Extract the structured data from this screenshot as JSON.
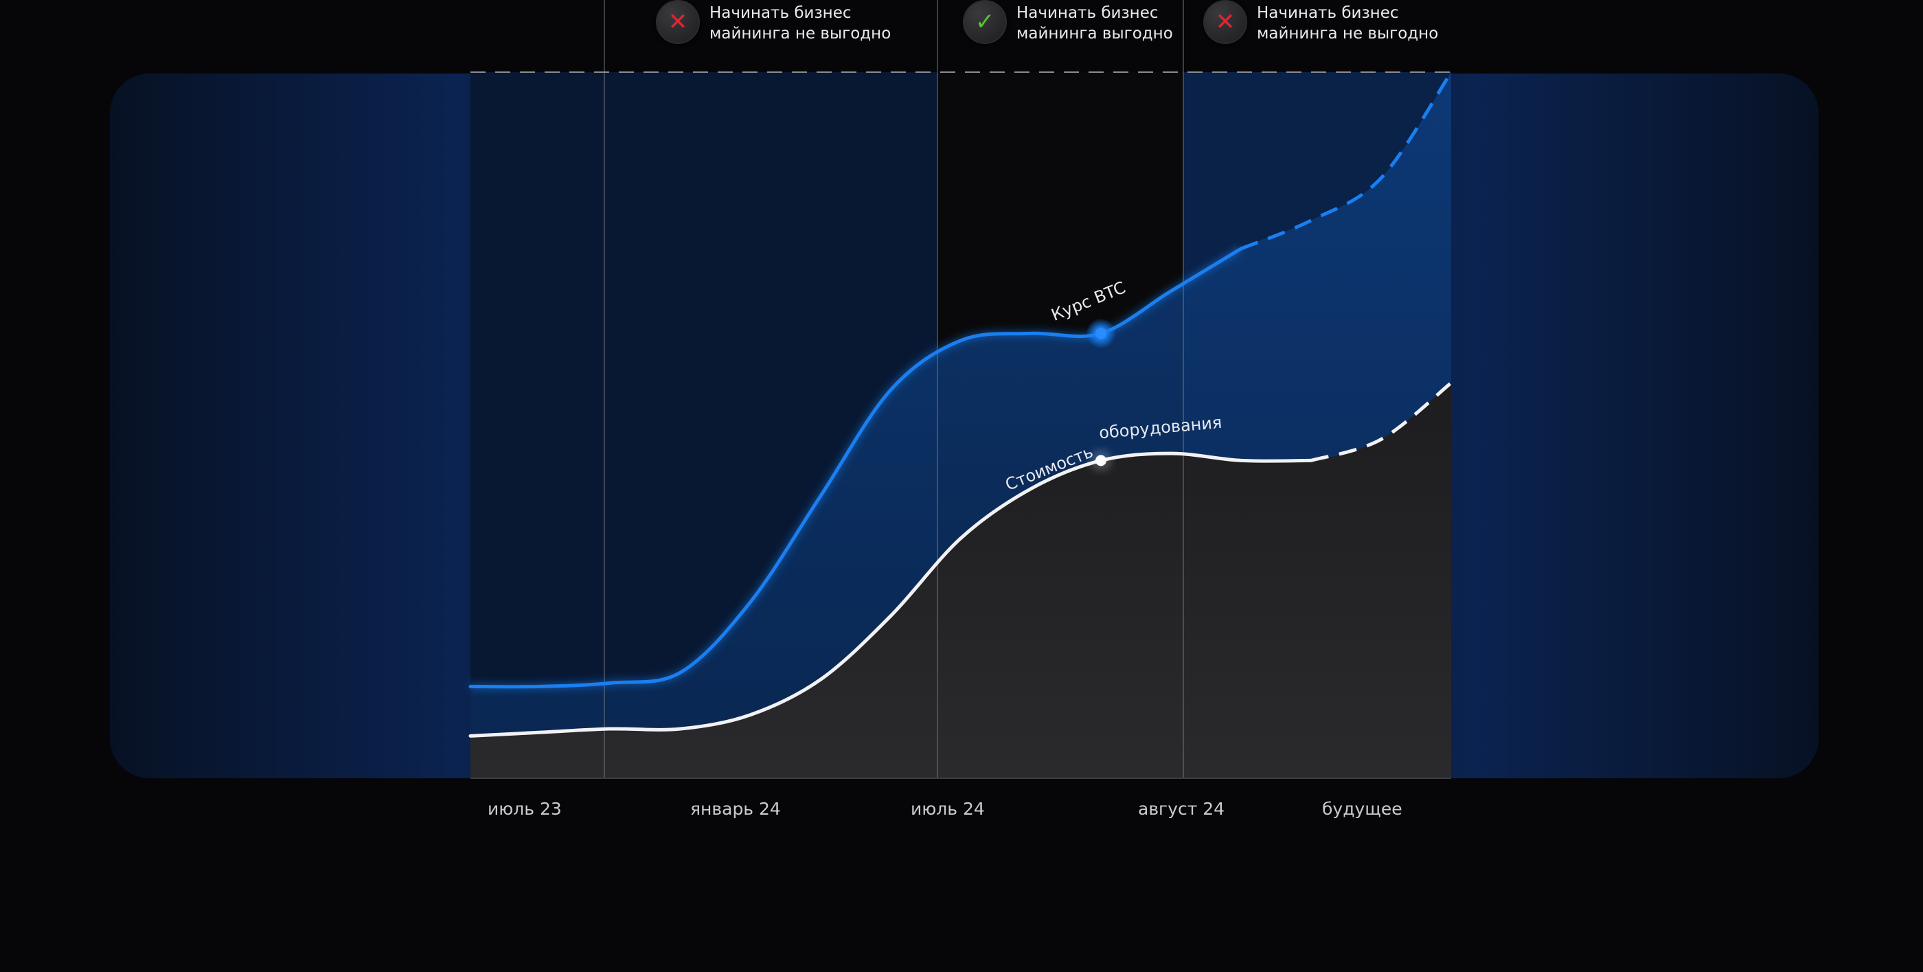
{
  "chart_data": {
    "type": "area",
    "title": "",
    "xlabel": "",
    "ylabel": "",
    "categories": [
      "июль 23",
      "январь 24",
      "июль 24",
      "август 24",
      "будущее"
    ],
    "x": [
      0,
      1,
      2,
      3,
      4,
      5,
      6,
      7,
      8,
      9,
      10,
      11,
      12,
      13,
      14
    ],
    "ylim": [
      0,
      100
    ],
    "grid": false,
    "series": [
      {
        "name": "Курс BTC",
        "color": "#1a7ff0",
        "values": [
          13,
          13,
          13.5,
          15,
          25,
          40,
          55,
          62,
          63,
          63,
          69,
          75,
          79,
          85,
          100
        ],
        "projected_from_index": 11
      },
      {
        "name": "Стоимость оборудования",
        "color": "#f2f2f4",
        "values": [
          6,
          6.5,
          7,
          7,
          9,
          14,
          23,
          34,
          41,
          45,
          46,
          45,
          45,
          48,
          56
        ],
        "projected_from_index": 12
      }
    ],
    "marker_index": 9,
    "phases": [
      {
        "status": "no",
        "label_line1": "Начинать бизнес",
        "label_line2": "майнинга не выгодно"
      },
      {
        "status": "yes",
        "label_line1": "Начинать бизнес",
        "label_line2": "майнинга выгодно"
      },
      {
        "status": "no",
        "label_line1": "Начинать бизнес",
        "label_line2": "майнинга не выгодно"
      }
    ],
    "colors": {
      "background": "#060608",
      "panel": "#0a1f45",
      "btc": "#1a7ff0",
      "equipment": "#f2f2f4",
      "cross": "#e0262f",
      "check": "#56c22f"
    }
  }
}
